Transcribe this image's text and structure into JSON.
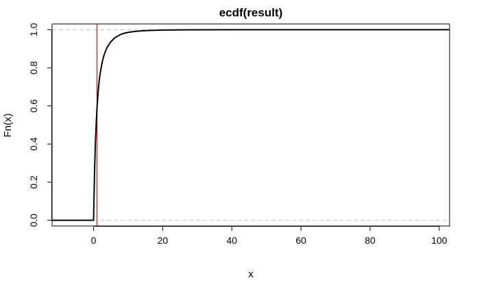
{
  "chart_data": {
    "type": "line",
    "title": "ecdf(result)",
    "xlabel": "x",
    "ylabel": "Fn(x)",
    "xlim": [
      -12,
      103
    ],
    "ylim": [
      -0.03,
      1.03
    ],
    "x_ticks": [
      0,
      20,
      40,
      60,
      80,
      100
    ],
    "y_ticks": [
      0.0,
      0.2,
      0.4,
      0.6,
      0.8,
      1.0
    ],
    "x_tick_labels": [
      "0",
      "20",
      "40",
      "60",
      "80",
      "100"
    ],
    "y_tick_labels": [
      "0.0",
      "0.2",
      "0.4",
      "0.6",
      "0.8",
      "1.0"
    ],
    "grid": false,
    "reference_lines": [
      {
        "orientation": "horizontal",
        "value": 0.0,
        "style": "dashed",
        "color": "#c0c0c0"
      },
      {
        "orientation": "horizontal",
        "value": 1.0,
        "style": "dashed",
        "color": "#c0c0c0"
      },
      {
        "orientation": "vertical",
        "value": 1.0,
        "style": "solid",
        "color": "#ff0000"
      }
    ],
    "series": [
      {
        "color": "#000000",
        "x": [
          -12,
          0,
          0.25,
          0.5,
          0.75,
          1,
          1.25,
          1.5,
          1.75,
          2,
          2.5,
          3,
          3.5,
          4,
          5,
          6,
          7,
          8,
          9,
          10,
          12,
          14,
          16,
          20,
          25,
          30,
          40,
          50,
          60,
          70,
          80,
          90,
          100,
          103
        ],
        "y": [
          0,
          0,
          0.23,
          0.39,
          0.5,
          0.59,
          0.655,
          0.71,
          0.75,
          0.78,
          0.83,
          0.865,
          0.89,
          0.91,
          0.937,
          0.955,
          0.967,
          0.976,
          0.982,
          0.986,
          0.991,
          0.994,
          0.996,
          0.998,
          0.999,
          0.9995,
          0.9999,
          1,
          1,
          1,
          1,
          1,
          1,
          1
        ]
      }
    ]
  }
}
